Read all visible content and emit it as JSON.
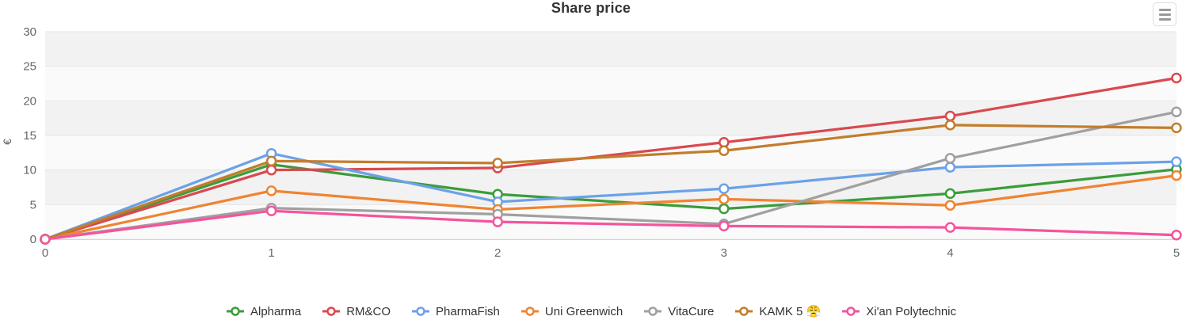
{
  "header": {
    "title": "Share price",
    "menu_icon": "hamburger-menu-icon"
  },
  "chart_data": {
    "type": "line",
    "title": "Share price",
    "xlabel": "",
    "ylabel": "€",
    "xlim": [
      0,
      5
    ],
    "ylim": [
      0,
      30
    ],
    "x_ticks": [
      0,
      1,
      2,
      3,
      4,
      5
    ],
    "y_ticks": [
      0,
      5,
      10,
      15,
      20,
      25,
      30
    ],
    "grid": true,
    "alternate_bands": true,
    "legend_position": "bottom",
    "x": [
      0,
      1,
      2,
      3,
      4,
      5
    ],
    "series": [
      {
        "name": "Alpharma",
        "color": "#3b9c3b",
        "values": [
          0,
          10.8,
          6.5,
          4.4,
          6.6,
          10.1
        ]
      },
      {
        "name": "RM&CO",
        "color": "#d9494f",
        "values": [
          0,
          10.0,
          10.3,
          14.0,
          17.8,
          23.3
        ]
      },
      {
        "name": "PharmaFish",
        "color": "#6ba2e8",
        "values": [
          0,
          12.4,
          5.4,
          7.3,
          10.4,
          11.2
        ]
      },
      {
        "name": "Uni Greenwich",
        "color": "#ef8432",
        "values": [
          0,
          7.0,
          4.3,
          5.8,
          4.9,
          9.2
        ]
      },
      {
        "name": "VitaCure",
        "color": "#a0a0a0",
        "values": [
          0,
          4.5,
          3.6,
          2.2,
          11.7,
          18.4
        ]
      },
      {
        "name": "KAMK 5 😤",
        "color": "#c27d2d",
        "values": [
          0,
          11.3,
          11.0,
          12.8,
          16.5,
          16.1
        ]
      },
      {
        "name": "Xi'an Polytechnic",
        "color": "#f4549d",
        "values": [
          0,
          4.1,
          2.5,
          1.9,
          1.7,
          0.6
        ]
      }
    ],
    "style": {
      "band_gray": "#f2f2f2",
      "band_light": "#fafafa",
      "gridline": "#e6e6e6",
      "axis_line": "#d6d6d6",
      "tick_label_color": "#666666",
      "title_color": "#333333"
    }
  }
}
